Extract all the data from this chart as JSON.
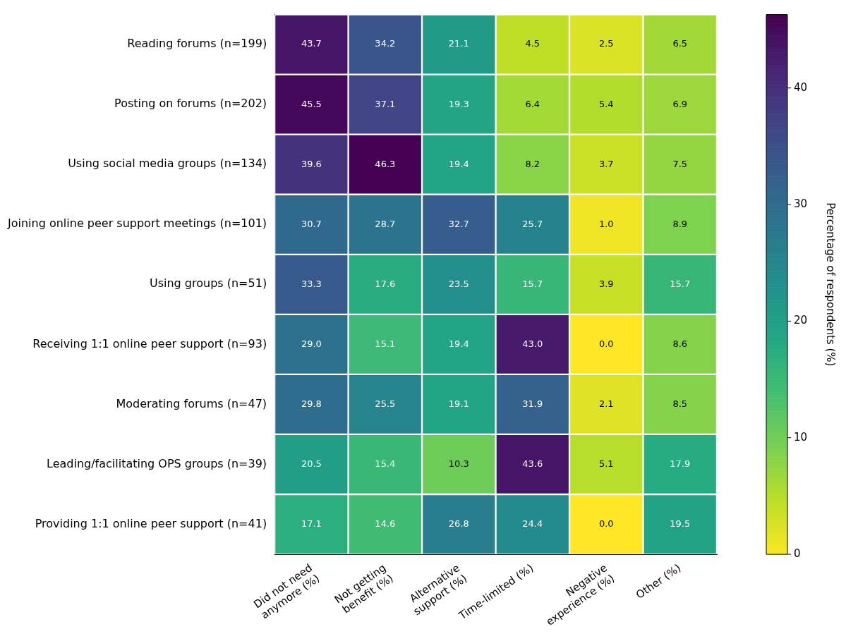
{
  "chart_data": {
    "type": "heatmap",
    "categories": [
      "Did not need anymore (%)",
      "Not getting benefit (%)",
      "Alternative support (%)",
      "Time-limited (%)",
      "Negative experience (%)",
      "Other (%)"
    ],
    "y_categories": [
      "Reading forums (n=199)",
      "Posting on forums (n=202)",
      "Using social media groups (n=134)",
      "Joining online peer support meetings (n=101)",
      "Using groups (n=51)",
      "Receiving 1:1 online peer support (n=93)",
      "Moderating forums (n=47)",
      "Leading/facilitating OPS groups (n=39)",
      "Providing 1:1 online peer support (n=41)"
    ],
    "cells": [
      [
        43.7,
        34.2,
        21.1,
        4.5,
        2.5,
        6.5
      ],
      [
        45.5,
        37.1,
        19.3,
        6.4,
        5.4,
        6.9
      ],
      [
        39.6,
        46.3,
        19.4,
        8.2,
        3.7,
        7.5
      ],
      [
        30.7,
        28.7,
        32.7,
        25.7,
        1.0,
        8.9
      ],
      [
        33.3,
        17.6,
        23.5,
        15.7,
        3.9,
        15.7
      ],
      [
        29.0,
        15.1,
        19.4,
        43.0,
        0.0,
        8.6
      ],
      [
        29.8,
        25.5,
        19.1,
        31.9,
        2.1,
        8.5
      ],
      [
        20.5,
        15.4,
        10.3,
        43.6,
        5.1,
        17.9
      ],
      [
        17.1,
        14.6,
        26.8,
        24.4,
        0.0,
        19.5
      ]
    ],
    "cell_labels": [
      [
        "43.7",
        "34.2",
        "21.1",
        "4.5",
        "2.5",
        "6.5"
      ],
      [
        "45.5",
        "37.1",
        "19.3",
        "6.4",
        "5.4",
        "6.9"
      ],
      [
        "39.6",
        "46.3",
        "19.4",
        "8.2",
        "3.7",
        "7.5"
      ],
      [
        "30.7",
        "28.7",
        "32.7",
        "25.7",
        "1.0",
        "8.9"
      ],
      [
        "33.3",
        "17.6",
        "23.5",
        "15.7",
        "3.9",
        "15.7"
      ],
      [
        "29.0",
        "15.1",
        "19.4",
        "43.0",
        "0.0",
        "8.6"
      ],
      [
        "29.8",
        "25.5",
        "19.1",
        "31.9",
        "2.1",
        "8.5"
      ],
      [
        "20.5",
        "15.4",
        "10.3",
        "43.6",
        "5.1",
        "17.9"
      ],
      [
        "17.1",
        "14.6",
        "26.8",
        "24.4",
        "0.0",
        "19.5"
      ]
    ],
    "clim": [
      0,
      46.3
    ],
    "cticks": [
      0,
      10,
      20,
      30,
      40
    ],
    "clabel": "Percentage of respondents (%)",
    "data_labels": true
  }
}
